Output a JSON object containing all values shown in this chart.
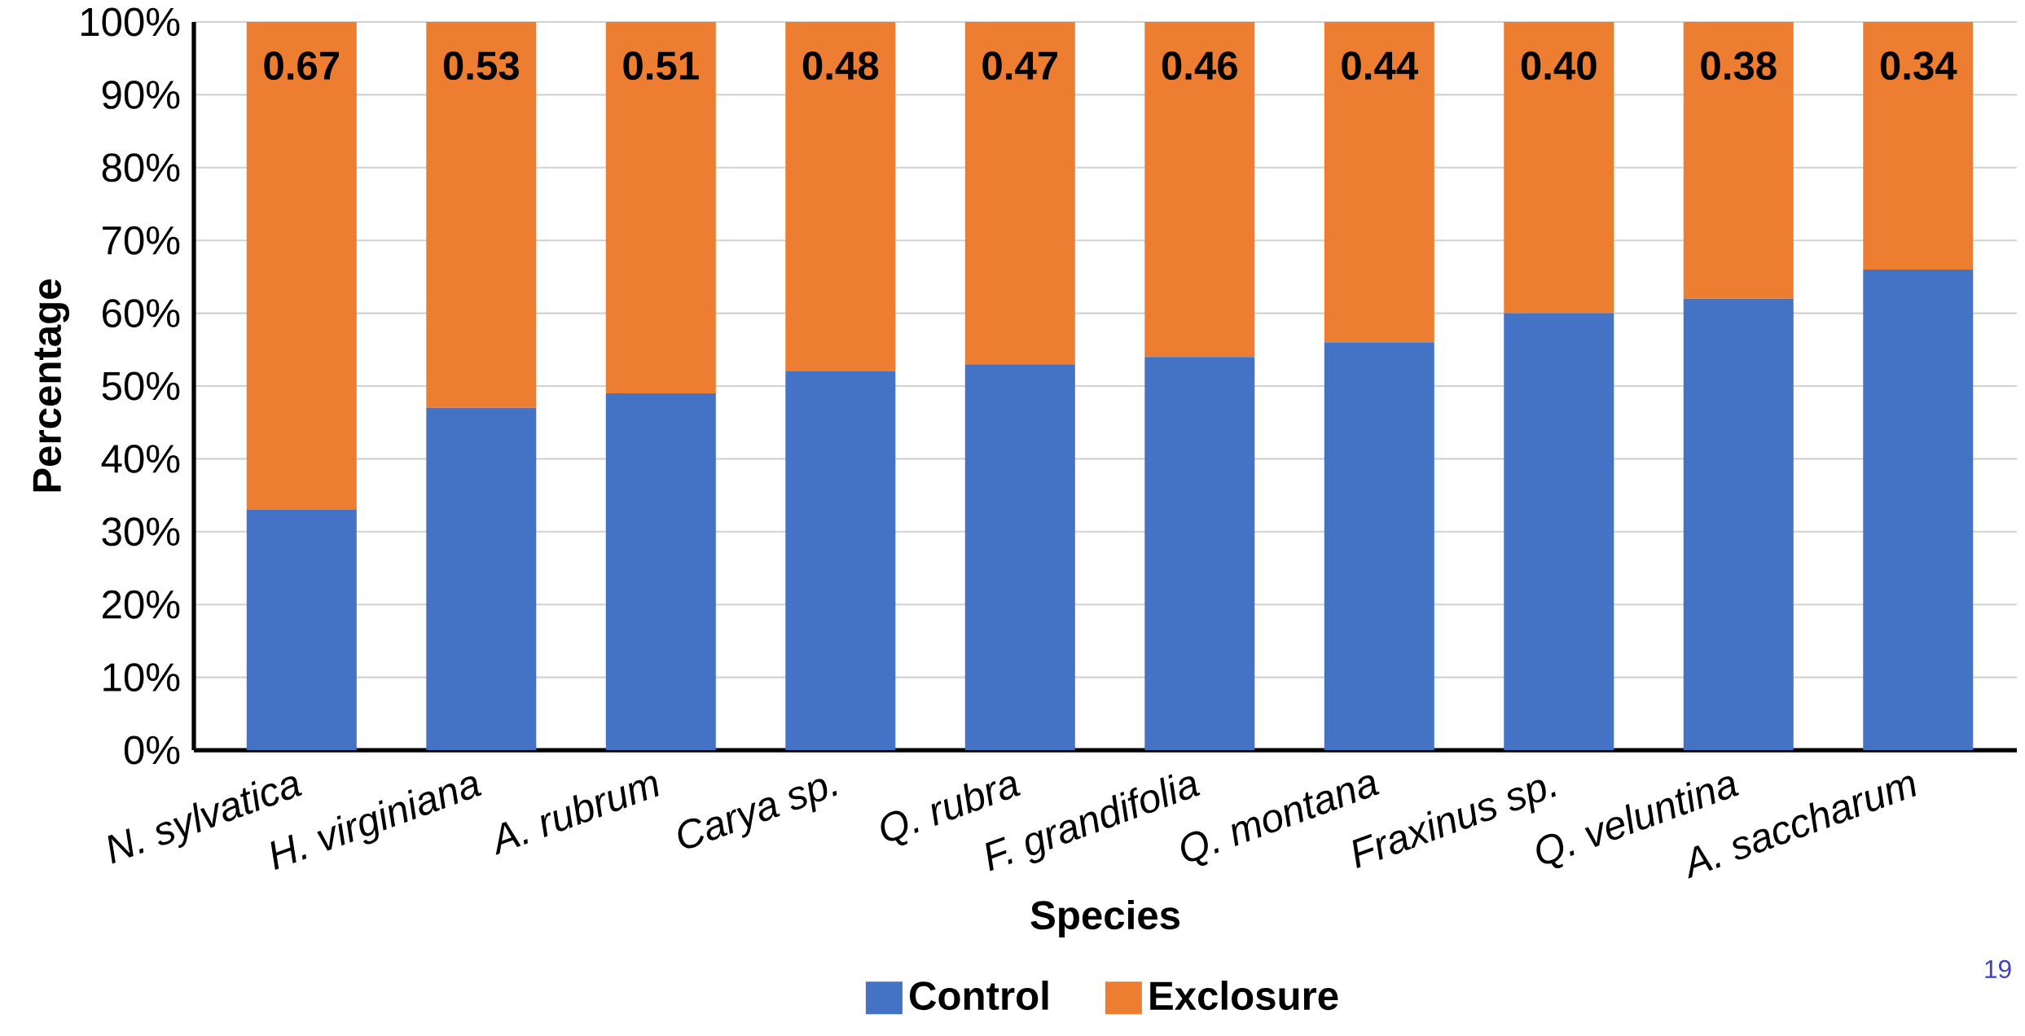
{
  "chart_data": {
    "type": "bar",
    "stacked": true,
    "xlabel": "Species",
    "ylabel": "Percentage",
    "categories": [
      "N. sylvatica",
      "H. virginiana",
      "A. rubrum",
      "Carya sp.",
      "Q. rubra",
      "F. grandifolia",
      "Q. montana",
      "Fraxinus sp.",
      "Q. veluntina",
      "A. saccharum"
    ],
    "series": [
      {
        "name": "Control",
        "color": "#4472c4",
        "values": [
          0.33,
          0.47,
          0.49,
          0.52,
          0.53,
          0.54,
          0.56,
          0.6,
          0.62,
          0.66
        ]
      },
      {
        "name": "Exclosure",
        "color": "#ed7d31",
        "values": [
          0.67,
          0.53,
          0.51,
          0.48,
          0.47,
          0.46,
          0.44,
          0.4,
          0.38,
          0.34
        ],
        "value_labels": [
          "0.67",
          "0.53",
          "0.51",
          "0.48",
          "0.47",
          "0.46",
          "0.44",
          "0.40",
          "0.38",
          "0.34"
        ]
      }
    ],
    "ylim": [
      0,
      1
    ],
    "yticks": [
      {
        "value": 0,
        "label": "0%"
      },
      {
        "value": 0.1,
        "label": "10%"
      },
      {
        "value": 0.2,
        "label": "20%"
      },
      {
        "value": 0.3,
        "label": "30%"
      },
      {
        "value": 0.4,
        "label": "40%"
      },
      {
        "value": 0.5,
        "label": "50%"
      },
      {
        "value": 0.6,
        "label": "60%"
      },
      {
        "value": 0.7,
        "label": "70%"
      },
      {
        "value": 0.8,
        "label": "80%"
      },
      {
        "value": 0.9,
        "label": "90%"
      },
      {
        "value": 1,
        "label": "100%"
      }
    ],
    "grid": "y",
    "legend": "bottom",
    "annotations": [
      "19"
    ]
  }
}
